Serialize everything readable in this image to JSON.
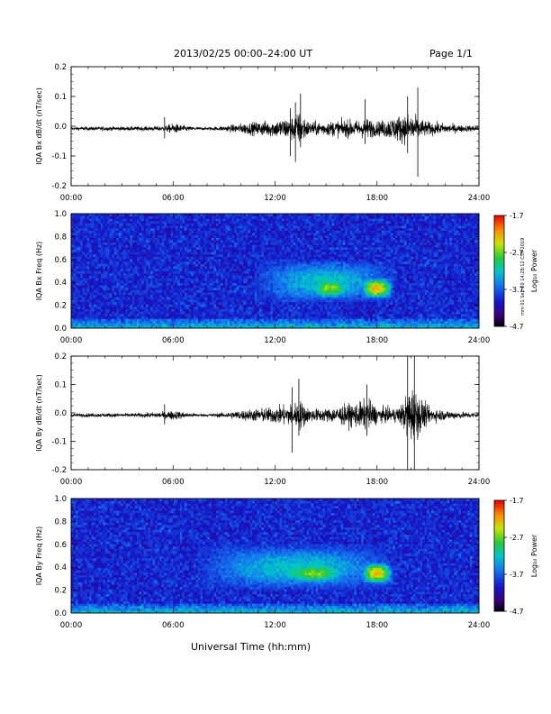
{
  "header": {
    "title": "2013/02/25  00:00–24:00 UT",
    "page": "Page 1/1"
  },
  "footer": {
    "xlabel": "Universal Time (hh:mm)",
    "side_note": "mm 01 Sep 20 14:28:12 CST 2019"
  },
  "colorbar": {
    "ticks": [
      "-1.7",
      "-2.7",
      "-3.7",
      "-4.7"
    ],
    "label": "Log₁₀ Power"
  },
  "chart_data": [
    {
      "type": "line",
      "ylabel": "IQA Bx dB/dt (nT/sec)",
      "xlim": [
        0,
        24
      ],
      "ylim": [
        -0.2,
        0.2
      ],
      "xticklabels": [
        "00:00",
        "06:00",
        "12:00",
        "18:00",
        "24:00"
      ],
      "yticklabels": [
        "0.2",
        "0.1",
        "0.0",
        "-0.1",
        "-0.2"
      ],
      "envelope": {
        "x": [
          0,
          2,
          4,
          5.5,
          6,
          7,
          8,
          9,
          10,
          11,
          12,
          13,
          13.5,
          14,
          15,
          16,
          17,
          17.5,
          18,
          19,
          20,
          20.5,
          21,
          22,
          23,
          24
        ],
        "y": [
          0.01,
          0.012,
          0.012,
          0.015,
          0.03,
          0.012,
          0.008,
          0.015,
          0.03,
          0.04,
          0.05,
          0.07,
          0.1,
          0.04,
          0.04,
          0.05,
          0.05,
          0.06,
          0.04,
          0.07,
          0.09,
          0.06,
          0.04,
          0.03,
          0.02,
          0.015
        ]
      },
      "spikes": [
        {
          "x": 5.5,
          "ymin": -0.04,
          "ymax": 0.03
        },
        {
          "x": 12.9,
          "ymin": -0.1,
          "ymax": 0.06
        },
        {
          "x": 13.2,
          "ymin": -0.12,
          "ymax": 0.08
        },
        {
          "x": 13.5,
          "ymin": -0.07,
          "ymax": 0.11
        },
        {
          "x": 17.3,
          "ymin": -0.06,
          "ymax": 0.09
        },
        {
          "x": 19.8,
          "ymin": -0.09,
          "ymax": 0.1
        },
        {
          "x": 20.4,
          "ymin": -0.17,
          "ymax": 0.13
        }
      ]
    },
    {
      "type": "heatmap",
      "ylabel": "IQA Bx Freq (Hz)",
      "xlim": [
        0,
        24
      ],
      "ylim": [
        0.0,
        1.0
      ],
      "xticklabels": [
        "00:00",
        "06:00",
        "12:00",
        "18:00",
        "24:00"
      ],
      "yticklabels": [
        "1.0",
        "0.8",
        "0.6",
        "0.4",
        "0.2",
        "0.0"
      ],
      "zlim": [
        -4.7,
        -1.7
      ],
      "bursts": [
        {
          "t0": 10.8,
          "t1": 19.0,
          "f0": 0.22,
          "f1": 0.6,
          "level": -3.2
        },
        {
          "t0": 14.0,
          "t1": 16.5,
          "f0": 0.25,
          "f1": 0.45,
          "level": -2.6
        },
        {
          "t0": 17.0,
          "t1": 19.0,
          "f0": 0.25,
          "f1": 0.45,
          "level": -2.2
        }
      ]
    },
    {
      "type": "line",
      "ylabel": "IQA By dB/dt (nT/sec)",
      "xlim": [
        0,
        24
      ],
      "ylim": [
        -0.2,
        0.2
      ],
      "xticklabels": [
        "00:00",
        "06:00",
        "12:00",
        "18:00",
        "24:00"
      ],
      "yticklabels": [
        "0.2",
        "0.1",
        "0.0",
        "-0.1",
        "-0.2"
      ],
      "envelope": {
        "x": [
          0,
          2,
          4,
          5.5,
          6,
          7,
          8,
          9,
          10,
          11,
          12,
          13,
          13.5,
          14,
          15,
          16,
          17,
          17.5,
          18,
          19,
          19.5,
          20,
          20.5,
          21,
          22,
          23,
          24
        ],
        "y": [
          0.01,
          0.012,
          0.012,
          0.02,
          0.03,
          0.012,
          0.008,
          0.015,
          0.03,
          0.04,
          0.05,
          0.07,
          0.09,
          0.04,
          0.04,
          0.06,
          0.08,
          0.1,
          0.05,
          0.04,
          0.07,
          0.19,
          0.12,
          0.05,
          0.03,
          0.02,
          0.015
        ]
      },
      "spikes": [
        {
          "x": 5.5,
          "ymin": -0.04,
          "ymax": 0.03
        },
        {
          "x": 13.0,
          "ymin": -0.14,
          "ymax": 0.09
        },
        {
          "x": 13.4,
          "ymin": -0.08,
          "ymax": 0.12
        },
        {
          "x": 17.4,
          "ymin": -0.08,
          "ymax": 0.1
        },
        {
          "x": 19.8,
          "ymin": -0.2,
          "ymax": 0.2
        },
        {
          "x": 20.2,
          "ymin": -0.2,
          "ymax": 0.2
        }
      ]
    },
    {
      "type": "heatmap",
      "ylabel": "IQA By Freq (Hz)",
      "xlim": [
        0,
        24
      ],
      "ylim": [
        0.0,
        1.0
      ],
      "xticklabels": [
        "00:00",
        "06:00",
        "12:00",
        "18:00",
        "24:00"
      ],
      "yticklabels": [
        "1.0",
        "0.8",
        "0.6",
        "0.4",
        "0.2",
        "0.0"
      ],
      "zlim": [
        -4.7,
        -1.7
      ],
      "bursts": [
        {
          "t0": 7.5,
          "t1": 19.0,
          "f0": 0.2,
          "f1": 0.6,
          "level": -3.2
        },
        {
          "t0": 12.0,
          "t1": 16.5,
          "f0": 0.25,
          "f1": 0.45,
          "level": -2.7
        },
        {
          "t0": 17.0,
          "t1": 19.0,
          "f0": 0.25,
          "f1": 0.45,
          "level": -2.2
        }
      ]
    }
  ]
}
